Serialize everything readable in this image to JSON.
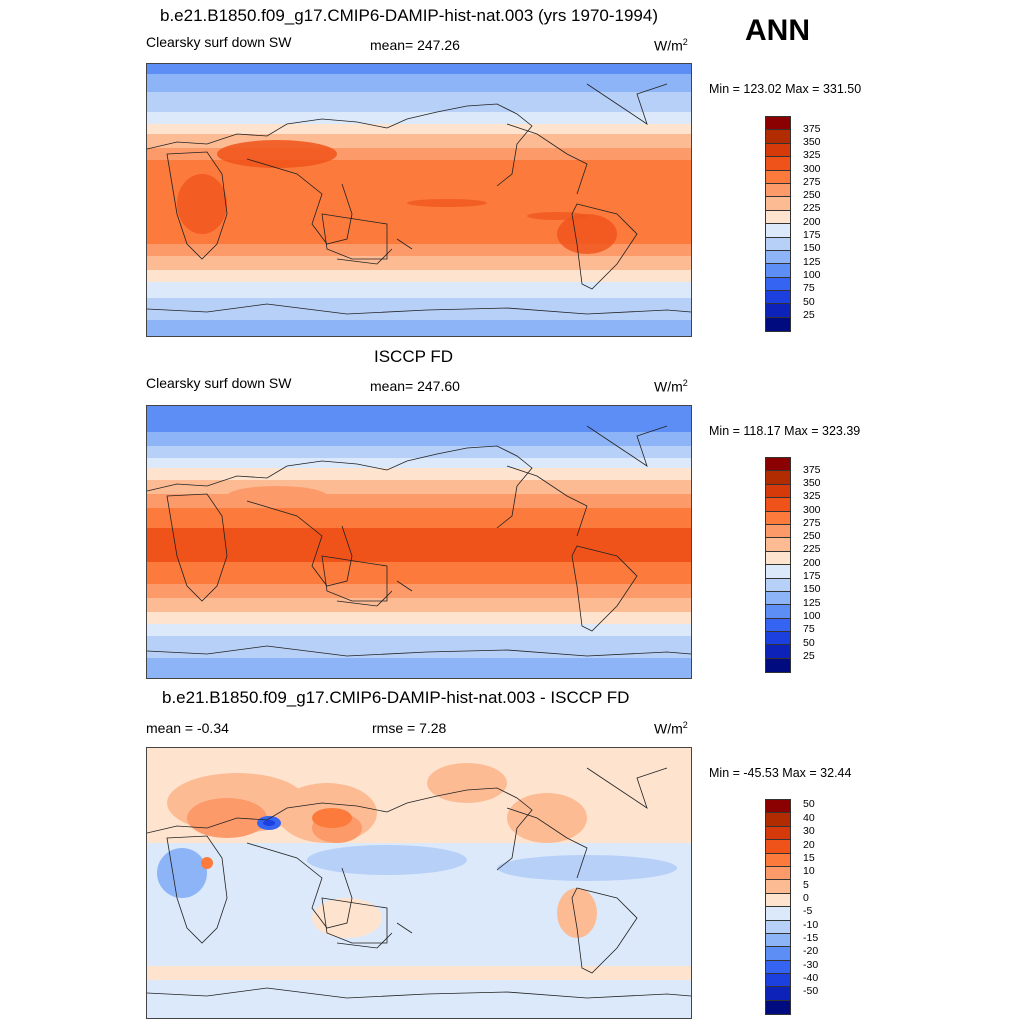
{
  "season": "ANN",
  "colors": {
    "abs_scale": [
      "#8b0000",
      "#b22c02",
      "#d63a0a",
      "#f0531a",
      "#fb7a3c",
      "#fc9a6a",
      "#fdbb94",
      "#fee3cf",
      "#dbe9fa",
      "#b7d0f8",
      "#8db4f6",
      "#5d8ef5",
      "#3664f2",
      "#1c3fe0",
      "#0d22b8",
      "#000b80"
    ],
    "diff_scale": [
      "#8b0000",
      "#b22c02",
      "#d63a0a",
      "#f0531a",
      "#fb7a3c",
      "#fc9a6a",
      "#fdbb94",
      "#fee3cf",
      "#dbe9fa",
      "#b7d0f8",
      "#8db4f6",
      "#5d8ef5",
      "#3664f2",
      "#1c3fe0",
      "#0d22b8",
      "#000b80"
    ]
  },
  "panel1": {
    "title": "b.e21.B1850.f09_g17.CMIP6-DAMIP-hist-nat.003 (yrs 1970-1994)",
    "left": "Clearsky surf down SW",
    "center": "mean= 247.26",
    "units": "W/m",
    "units_sup": "2",
    "minmax": "Min = 123.02 Max = 331.50",
    "levels": [
      "375",
      "350",
      "325",
      "300",
      "275",
      "250",
      "225",
      "200",
      "175",
      "150",
      "125",
      "100",
      "75",
      "50",
      "25"
    ]
  },
  "panel2": {
    "title": "ISCCP FD",
    "left": "Clearsky surf down SW",
    "center": "mean= 247.60",
    "units": "W/m",
    "units_sup": "2",
    "minmax": "Min = 118.17 Max = 323.39",
    "levels": [
      "375",
      "350",
      "325",
      "300",
      "275",
      "250",
      "225",
      "200",
      "175",
      "150",
      "125",
      "100",
      "75",
      "50",
      "25"
    ]
  },
  "panel3": {
    "title": "b.e21.B1850.f09_g17.CMIP6-DAMIP-hist-nat.003 - ISCCP FD",
    "left": "mean =  -0.34",
    "center": "rmse =   7.28",
    "units": "W/m",
    "units_sup": "2",
    "minmax": "Min = -45.53 Max =  32.44",
    "levels": [
      "50",
      "40",
      "30",
      "20",
      "15",
      "10",
      "5",
      "0",
      "-5",
      "-10",
      "-15",
      "-20",
      "-30",
      "-40",
      "-50"
    ]
  }
}
